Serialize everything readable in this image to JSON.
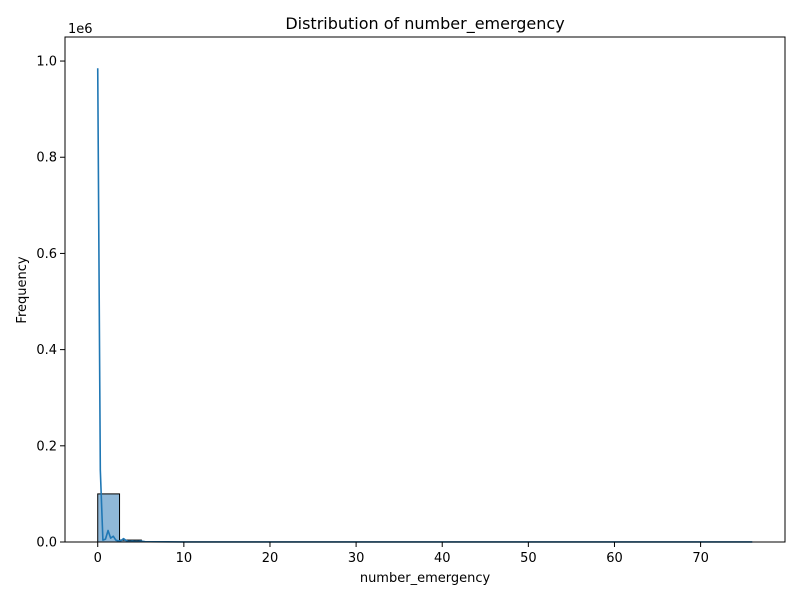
{
  "chart_data": {
    "type": "bar",
    "title": "Distribution of number_emergency",
    "xlabel": "number_emergency",
    "ylabel": "Frequency",
    "y_multiplier_label": "1e6",
    "xlim": [
      -3.8,
      79.8
    ],
    "ylim": [
      0,
      1.05
    ],
    "x_ticks": [
      0,
      10,
      20,
      30,
      40,
      50,
      60,
      70
    ],
    "x_tick_labels": [
      "0",
      "10",
      "20",
      "30",
      "40",
      "50",
      "60",
      "70"
    ],
    "y_ticks": [
      0,
      0.2,
      0.4,
      0.6,
      0.8,
      1.0
    ],
    "y_tick_labels": [
      "0.0",
      "0.2",
      "0.4",
      "0.6",
      "0.8",
      "1.0"
    ],
    "grid": false,
    "histogram": {
      "bin_width": 2.533,
      "bins": [
        {
          "x0": 0.0,
          "value": 0.1
        },
        {
          "x0": 2.533,
          "value": 0.004
        }
      ]
    },
    "kde": {
      "x": [
        0,
        0.3,
        0.6,
        0.9,
        1.2,
        1.5,
        1.8,
        2.1,
        2.4,
        2.7,
        3.0,
        3.3,
        3.6,
        4.0,
        4.5,
        5.0,
        5.5,
        6.0,
        8,
        10,
        20,
        30,
        40,
        50,
        60,
        70,
        76
      ],
      "y": [
        0.985,
        0.15,
        0.004,
        0.006,
        0.024,
        0.008,
        0.012,
        0.004,
        0.002,
        0.003,
        0.007,
        0.003,
        0.001,
        0.002,
        0.001,
        0.002,
        0.0008,
        0.0005,
        0.0003,
        0.0002,
        0.0001,
        0.0001,
        0.0001,
        0.0001,
        0.0001,
        0.0001,
        0.0001
      ]
    },
    "colors": {
      "bar_fill": "#8fb8d8",
      "bar_edge": "#000000",
      "kde_line": "#1f77b4",
      "axis": "#000000"
    }
  }
}
